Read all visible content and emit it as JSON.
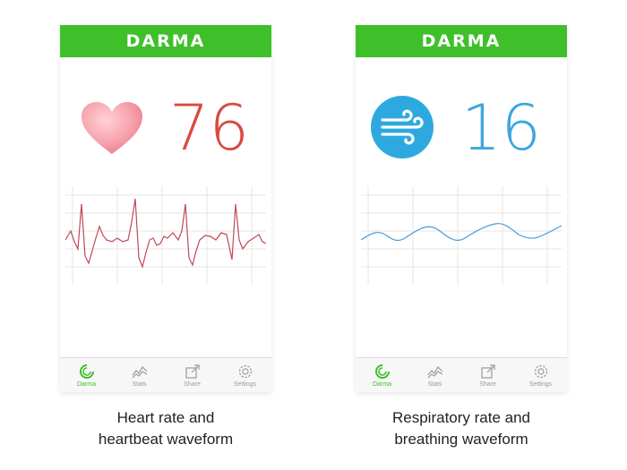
{
  "brand": "DARMA",
  "tabs": [
    {
      "label": "Darma",
      "icon": "darma-logo-icon",
      "active": true
    },
    {
      "label": "Stats",
      "icon": "stats-chart-icon",
      "active": false
    },
    {
      "label": "Share",
      "icon": "share-icon",
      "active": false
    },
    {
      "label": "Settings",
      "icon": "gear-icon",
      "active": false
    }
  ],
  "heart_panel": {
    "value": "76",
    "icon": "heart-icon",
    "value_color": "#d94a40",
    "wave_color": "#c0485a",
    "caption_line1": "Heart rate and",
    "caption_line2": "heartbeat waveform"
  },
  "breath_panel": {
    "value": "16",
    "icon": "wind-icon",
    "value_color": "#3ea6e0",
    "wave_color": "#4a9cd6",
    "caption_line1": "Respiratory rate and",
    "caption_line2": "breathing waveform"
  },
  "colors": {
    "brand_green": "#3fc02a"
  }
}
